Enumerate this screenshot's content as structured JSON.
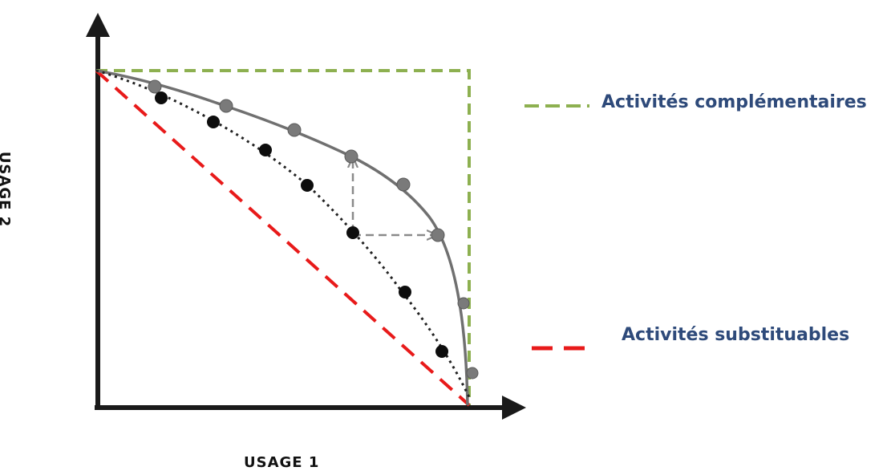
{
  "diagram": {
    "x_axis_label": "USAGE 1",
    "y_axis_label": "USAGE 2"
  },
  "legend": [
    {
      "label": "Activités complémentaires",
      "color": "#8db050",
      "style": "dashed"
    },
    {
      "label": "Activités substituables",
      "color": "#e81a1a",
      "style": "dashed"
    }
  ],
  "curves": {
    "concave_frontier": {
      "color": "#707070",
      "style": "solid",
      "points": 7
    },
    "inner_frontier": {
      "color": "#222222",
      "style": "dotted",
      "points": 8
    },
    "shift_arrows": {
      "color": "#8a8a8a",
      "style": "dashed"
    }
  },
  "colors": {
    "axis": "#1a1a1a",
    "legend_text": "#2e4a7a"
  }
}
